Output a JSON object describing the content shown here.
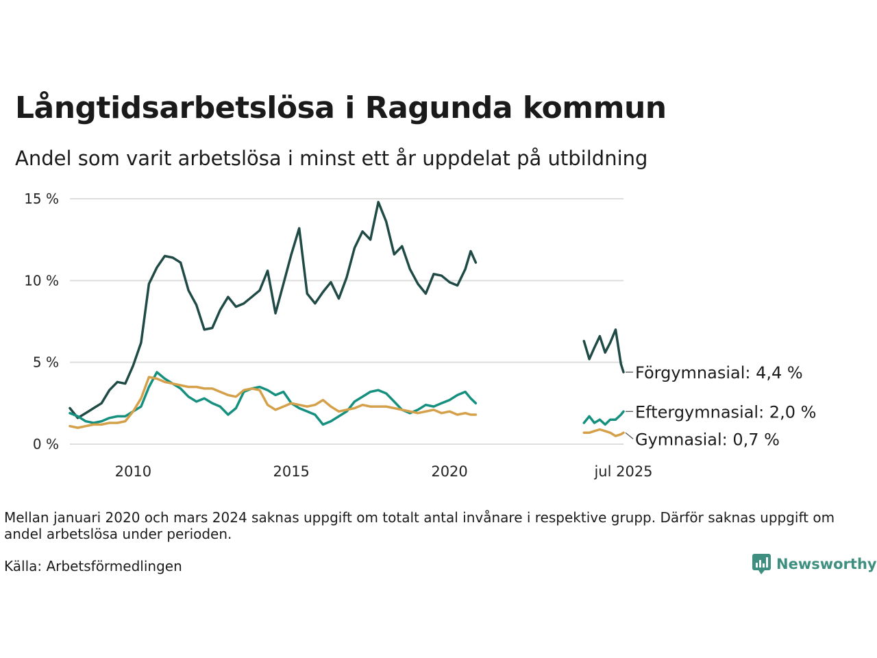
{
  "title": "Långtidsarbetslösa i Ragunda kommun",
  "subtitle": "Andel som varit arbetslösa i minst ett år uppdelat på utbildning",
  "note": "Mellan januari 2020 och mars 2024 saknas uppgift om totalt antal invånare i respektive grupp. Därför saknas uppgift om andel arbetslösa under perioden.",
  "source": "Källa: Arbetsförmedlingen",
  "logo": {
    "name": "Newsworthy",
    "icon": "bar-chart-speech-bubble-icon",
    "color": "#3e8f7f"
  },
  "chart_data": {
    "type": "line",
    "x_unit": "decimal year",
    "xlim": [
      2008.0,
      2025.5
    ],
    "ylim": [
      0,
      15
    ],
    "yticks": [
      {
        "value": 0,
        "label": "0 %"
      },
      {
        "value": 5,
        "label": "5 %"
      },
      {
        "value": 10,
        "label": "10 %"
      },
      {
        "value": 15,
        "label": "15 %"
      }
    ],
    "xticks": [
      {
        "value": 2010,
        "label": "2010"
      },
      {
        "value": 2015,
        "label": "2015"
      },
      {
        "value": 2020,
        "label": "2020"
      },
      {
        "value": 2025.5,
        "label": "jul 2025"
      }
    ],
    "grid": "horizontal",
    "legend": "direct labels at line ends",
    "series": [
      {
        "name": "Förgymnasial",
        "end_label": "Förgymnasial: 4,4 %",
        "color": "#1f4a45",
        "segments": [
          [
            [
              2008.0,
              2.2
            ],
            [
              2008.25,
              1.6
            ],
            [
              2008.5,
              1.9
            ],
            [
              2008.75,
              2.2
            ],
            [
              2009.0,
              2.5
            ],
            [
              2009.25,
              3.3
            ],
            [
              2009.5,
              3.8
            ],
            [
              2009.75,
              3.7
            ],
            [
              2010.0,
              4.8
            ],
            [
              2010.25,
              6.2
            ],
            [
              2010.5,
              9.8
            ],
            [
              2010.75,
              10.8
            ],
            [
              2011.0,
              11.5
            ],
            [
              2011.25,
              11.4
            ],
            [
              2011.5,
              11.1
            ],
            [
              2011.75,
              9.4
            ],
            [
              2012.0,
              8.5
            ],
            [
              2012.25,
              7.0
            ],
            [
              2012.5,
              7.1
            ],
            [
              2012.75,
              8.2
            ],
            [
              2013.0,
              9.0
            ],
            [
              2013.25,
              8.4
            ],
            [
              2013.5,
              8.6
            ],
            [
              2013.75,
              9.0
            ],
            [
              2014.0,
              9.4
            ],
            [
              2014.25,
              10.6
            ],
            [
              2014.5,
              8.0
            ],
            [
              2014.75,
              9.8
            ],
            [
              2015.0,
              11.6
            ],
            [
              2015.25,
              13.2
            ],
            [
              2015.5,
              9.2
            ],
            [
              2015.75,
              8.6
            ],
            [
              2016.0,
              9.3
            ],
            [
              2016.25,
              9.9
            ],
            [
              2016.5,
              8.9
            ],
            [
              2016.75,
              10.2
            ],
            [
              2017.0,
              12.0
            ],
            [
              2017.25,
              13.0
            ],
            [
              2017.5,
              12.5
            ],
            [
              2017.75,
              14.8
            ],
            [
              2018.0,
              13.6
            ],
            [
              2018.25,
              11.6
            ],
            [
              2018.5,
              12.1
            ],
            [
              2018.75,
              10.7
            ],
            [
              2019.0,
              9.8
            ],
            [
              2019.25,
              9.2
            ],
            [
              2019.5,
              10.4
            ],
            [
              2019.75,
              10.3
            ],
            [
              2020.0,
              9.9
            ],
            [
              2020.25,
              9.7
            ],
            [
              2020.5,
              10.7
            ],
            [
              2020.67,
              11.8
            ],
            [
              2020.83,
              11.1
            ]
          ],
          [
            [
              2024.25,
              6.3
            ],
            [
              2024.42,
              5.2
            ],
            [
              2024.58,
              5.9
            ],
            [
              2024.75,
              6.6
            ],
            [
              2024.92,
              5.6
            ],
            [
              2025.08,
              6.2
            ],
            [
              2025.25,
              7.0
            ],
            [
              2025.42,
              4.9
            ],
            [
              2025.5,
              4.4
            ]
          ]
        ]
      },
      {
        "name": "Eftergymnasial",
        "end_label": "Eftergymnasial: 2,0 %",
        "color": "#15907f",
        "segments": [
          [
            [
              2008.0,
              1.9
            ],
            [
              2008.25,
              1.7
            ],
            [
              2008.5,
              1.4
            ],
            [
              2008.75,
              1.3
            ],
            [
              2009.0,
              1.4
            ],
            [
              2009.25,
              1.6
            ],
            [
              2009.5,
              1.7
            ],
            [
              2009.75,
              1.7
            ],
            [
              2010.0,
              2.0
            ],
            [
              2010.25,
              2.3
            ],
            [
              2010.5,
              3.5
            ],
            [
              2010.75,
              4.4
            ],
            [
              2011.0,
              4.0
            ],
            [
              2011.25,
              3.7
            ],
            [
              2011.5,
              3.4
            ],
            [
              2011.75,
              2.9
            ],
            [
              2012.0,
              2.6
            ],
            [
              2012.25,
              2.8
            ],
            [
              2012.5,
              2.5
            ],
            [
              2012.75,
              2.3
            ],
            [
              2013.0,
              1.8
            ],
            [
              2013.25,
              2.2
            ],
            [
              2013.5,
              3.2
            ],
            [
              2013.75,
              3.4
            ],
            [
              2014.0,
              3.5
            ],
            [
              2014.25,
              3.3
            ],
            [
              2014.5,
              3.0
            ],
            [
              2014.75,
              3.2
            ],
            [
              2015.0,
              2.5
            ],
            [
              2015.25,
              2.2
            ],
            [
              2015.5,
              2.0
            ],
            [
              2015.75,
              1.8
            ],
            [
              2016.0,
              1.2
            ],
            [
              2016.25,
              1.4
            ],
            [
              2016.5,
              1.7
            ],
            [
              2016.75,
              2.0
            ],
            [
              2017.0,
              2.6
            ],
            [
              2017.25,
              2.9
            ],
            [
              2017.5,
              3.2
            ],
            [
              2017.75,
              3.3
            ],
            [
              2018.0,
              3.1
            ],
            [
              2018.25,
              2.6
            ],
            [
              2018.5,
              2.1
            ],
            [
              2018.75,
              1.9
            ],
            [
              2019.0,
              2.1
            ],
            [
              2019.25,
              2.4
            ],
            [
              2019.5,
              2.3
            ],
            [
              2019.75,
              2.5
            ],
            [
              2020.0,
              2.7
            ],
            [
              2020.25,
              3.0
            ],
            [
              2020.5,
              3.2
            ],
            [
              2020.67,
              2.8
            ],
            [
              2020.83,
              2.5
            ]
          ],
          [
            [
              2024.25,
              1.3
            ],
            [
              2024.42,
              1.7
            ],
            [
              2024.58,
              1.3
            ],
            [
              2024.75,
              1.5
            ],
            [
              2024.92,
              1.2
            ],
            [
              2025.08,
              1.5
            ],
            [
              2025.25,
              1.5
            ],
            [
              2025.42,
              1.8
            ],
            [
              2025.5,
              2.0
            ]
          ]
        ]
      },
      {
        "name": "Gymnasial",
        "end_label": "Gymnasial: 0,7 %",
        "color": "#d4a04a",
        "segments": [
          [
            [
              2008.0,
              1.1
            ],
            [
              2008.25,
              1.0
            ],
            [
              2008.5,
              1.1
            ],
            [
              2008.75,
              1.2
            ],
            [
              2009.0,
              1.2
            ],
            [
              2009.25,
              1.3
            ],
            [
              2009.5,
              1.3
            ],
            [
              2009.75,
              1.4
            ],
            [
              2010.0,
              2.0
            ],
            [
              2010.25,
              2.8
            ],
            [
              2010.5,
              4.1
            ],
            [
              2010.75,
              4.0
            ],
            [
              2011.0,
              3.8
            ],
            [
              2011.25,
              3.7
            ],
            [
              2011.5,
              3.6
            ],
            [
              2011.75,
              3.5
            ],
            [
              2012.0,
              3.5
            ],
            [
              2012.25,
              3.4
            ],
            [
              2012.5,
              3.4
            ],
            [
              2012.75,
              3.2
            ],
            [
              2013.0,
              3.0
            ],
            [
              2013.25,
              2.9
            ],
            [
              2013.5,
              3.3
            ],
            [
              2013.75,
              3.4
            ],
            [
              2014.0,
              3.3
            ],
            [
              2014.25,
              2.4
            ],
            [
              2014.5,
              2.1
            ],
            [
              2014.75,
              2.3
            ],
            [
              2015.0,
              2.5
            ],
            [
              2015.25,
              2.4
            ],
            [
              2015.5,
              2.3
            ],
            [
              2015.75,
              2.4
            ],
            [
              2016.0,
              2.7
            ],
            [
              2016.25,
              2.3
            ],
            [
              2016.5,
              2.0
            ],
            [
              2016.75,
              2.1
            ],
            [
              2017.0,
              2.2
            ],
            [
              2017.25,
              2.4
            ],
            [
              2017.5,
              2.3
            ],
            [
              2017.75,
              2.3
            ],
            [
              2018.0,
              2.3
            ],
            [
              2018.25,
              2.2
            ],
            [
              2018.5,
              2.1
            ],
            [
              2018.75,
              2.0
            ],
            [
              2019.0,
              1.9
            ],
            [
              2019.25,
              2.0
            ],
            [
              2019.5,
              2.1
            ],
            [
              2019.75,
              1.9
            ],
            [
              2020.0,
              2.0
            ],
            [
              2020.25,
              1.8
            ],
            [
              2020.5,
              1.9
            ],
            [
              2020.67,
              1.8
            ],
            [
              2020.83,
              1.8
            ]
          ],
          [
            [
              2024.25,
              0.7
            ],
            [
              2024.42,
              0.7
            ],
            [
              2024.58,
              0.8
            ],
            [
              2024.75,
              0.9
            ],
            [
              2024.92,
              0.8
            ],
            [
              2025.08,
              0.7
            ],
            [
              2025.25,
              0.5
            ],
            [
              2025.42,
              0.6
            ],
            [
              2025.5,
              0.7
            ]
          ]
        ]
      }
    ]
  }
}
